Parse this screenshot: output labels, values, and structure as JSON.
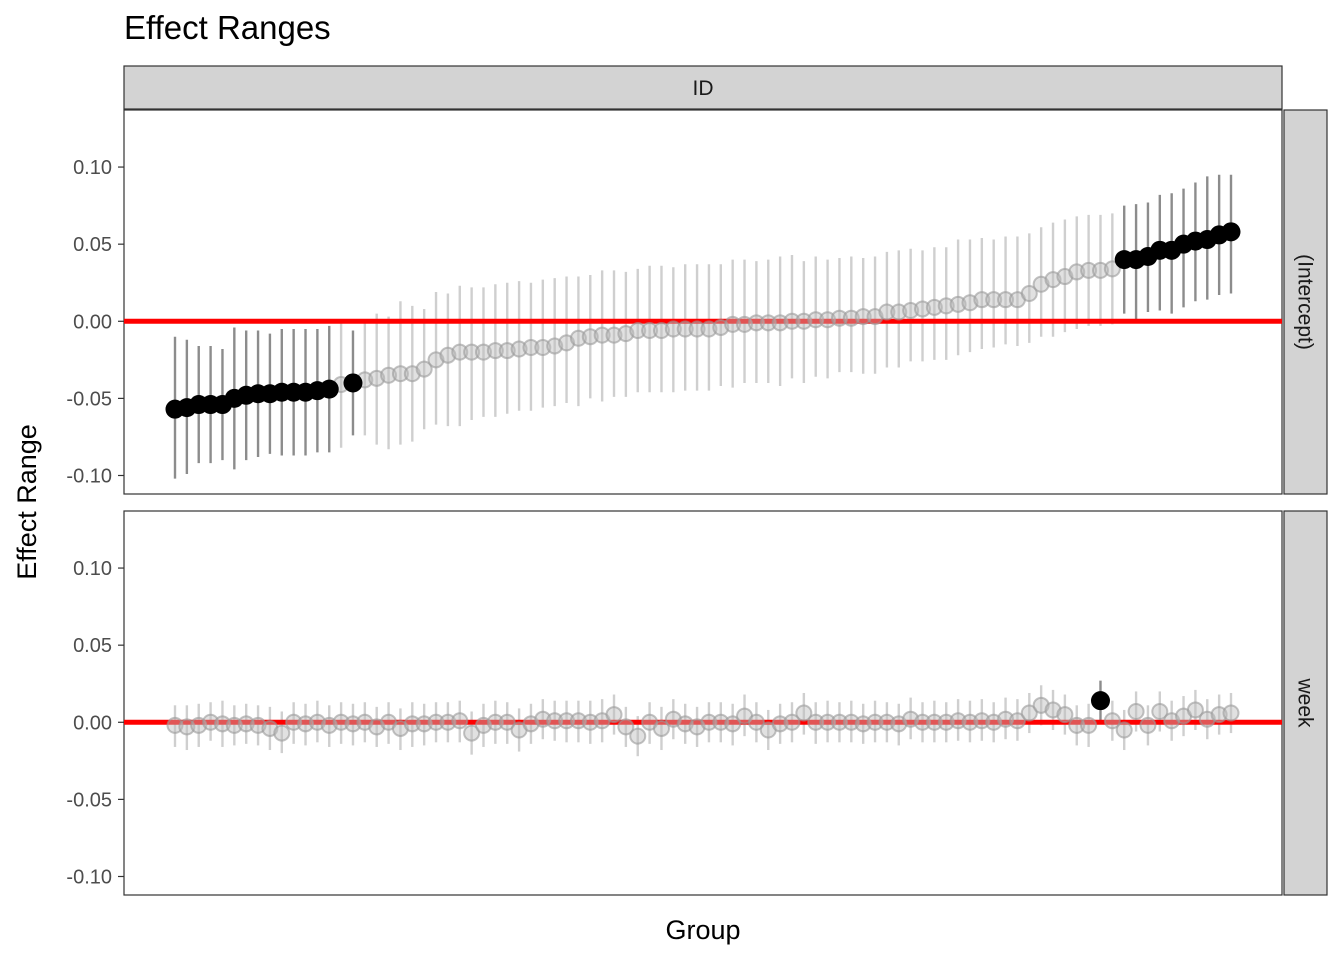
{
  "chart_data": {
    "type": "scatter",
    "subtype": "caterpillar-plot",
    "title": "Effect Ranges",
    "xlabel": "Group",
    "ylabel": "Effect Range",
    "ylim": [
      -0.112,
      0.137
    ],
    "yticks": [
      -0.1,
      -0.05,
      0.0,
      0.05,
      0.1
    ],
    "ytick_labels": [
      "-0.10",
      "-0.05",
      "0.00",
      "0.05",
      "0.10"
    ],
    "facet_column": "ID",
    "reference_line": {
      "y": 0,
      "color": "#ff0000"
    },
    "colors": {
      "significant_point": "#000000",
      "nonsignificant_point": "#bdbdbd",
      "reference_line": "#ff0000",
      "strip_fill": "#d3d3d3"
    },
    "grid": false,
    "legend": "none",
    "panels": [
      {
        "name": "(Intercept)",
        "groups": 90,
        "estimates": [
          -0.057,
          -0.056,
          -0.054,
          -0.054,
          -0.054,
          -0.05,
          -0.048,
          -0.047,
          -0.047,
          -0.046,
          -0.046,
          -0.046,
          -0.045,
          -0.044,
          -0.041,
          -0.04,
          -0.038,
          -0.037,
          -0.035,
          -0.034,
          -0.034,
          -0.031,
          -0.025,
          -0.022,
          -0.02,
          -0.02,
          -0.02,
          -0.019,
          -0.019,
          -0.018,
          -0.017,
          -0.017,
          -0.016,
          -0.014,
          -0.011,
          -0.01,
          -0.009,
          -0.009,
          -0.008,
          -0.006,
          -0.006,
          -0.006,
          -0.005,
          -0.005,
          -0.005,
          -0.005,
          -0.004,
          -0.002,
          -0.002,
          -0.001,
          -0.001,
          -0.001,
          0.0,
          0.0,
          0.001,
          0.001,
          0.002,
          0.002,
          0.003,
          0.003,
          0.006,
          0.006,
          0.007,
          0.008,
          0.009,
          0.01,
          0.011,
          0.012,
          0.014,
          0.014,
          0.014,
          0.014,
          0.018,
          0.024,
          0.027,
          0.029,
          0.032,
          0.033,
          0.033,
          0.034,
          0.04,
          0.04,
          0.042,
          0.046,
          0.046,
          0.05,
          0.052,
          0.053,
          0.056,
          0.058
        ],
        "lower": [
          -0.102,
          -0.099,
          -0.092,
          -0.092,
          -0.09,
          -0.096,
          -0.09,
          -0.088,
          -0.086,
          -0.087,
          -0.087,
          -0.087,
          -0.085,
          -0.085,
          -0.082,
          -0.074,
          -0.074,
          -0.08,
          -0.083,
          -0.08,
          -0.078,
          -0.07,
          -0.067,
          -0.068,
          -0.068,
          -0.064,
          -0.062,
          -0.062,
          -0.06,
          -0.058,
          -0.058,
          -0.056,
          -0.055,
          -0.053,
          -0.055,
          -0.05,
          -0.052,
          -0.049,
          -0.049,
          -0.046,
          -0.046,
          -0.046,
          -0.046,
          -0.045,
          -0.045,
          -0.045,
          -0.042,
          -0.043,
          -0.04,
          -0.04,
          -0.04,
          -0.042,
          -0.037,
          -0.04,
          -0.036,
          -0.037,
          -0.033,
          -0.033,
          -0.034,
          -0.034,
          -0.03,
          -0.03,
          -0.026,
          -0.026,
          -0.025,
          -0.025,
          -0.022,
          -0.02,
          -0.018,
          -0.017,
          -0.015,
          -0.016,
          -0.014,
          -0.01,
          -0.01,
          -0.007,
          -0.005,
          -0.003,
          -0.003,
          -0.002,
          0.005,
          0.001,
          0.006,
          0.007,
          0.005,
          0.009,
          0.013,
          0.014,
          0.017,
          0.018
        ],
        "upper": [
          -0.01,
          -0.012,
          -0.016,
          -0.016,
          -0.018,
          -0.004,
          -0.006,
          -0.006,
          -0.008,
          -0.005,
          -0.005,
          -0.005,
          -0.005,
          -0.003,
          0.0,
          -0.006,
          0.0,
          0.005,
          0.003,
          0.013,
          0.01,
          0.008,
          0.019,
          0.018,
          0.023,
          0.022,
          0.022,
          0.024,
          0.025,
          0.026,
          0.025,
          0.027,
          0.028,
          0.029,
          0.029,
          0.03,
          0.033,
          0.033,
          0.032,
          0.034,
          0.036,
          0.036,
          0.035,
          0.037,
          0.037,
          0.037,
          0.037,
          0.04,
          0.04,
          0.039,
          0.04,
          0.042,
          0.043,
          0.039,
          0.042,
          0.04,
          0.041,
          0.042,
          0.041,
          0.042,
          0.045,
          0.046,
          0.047,
          0.046,
          0.048,
          0.048,
          0.053,
          0.053,
          0.054,
          0.053,
          0.055,
          0.055,
          0.057,
          0.061,
          0.064,
          0.066,
          0.068,
          0.069,
          0.069,
          0.07,
          0.075,
          0.076,
          0.077,
          0.082,
          0.083,
          0.086,
          0.09,
          0.094,
          0.095,
          0.095
        ]
      },
      {
        "name": "week",
        "groups": 90,
        "estimates": [
          -0.002,
          -0.003,
          -0.002,
          0.0,
          -0.001,
          -0.002,
          -0.001,
          -0.002,
          -0.004,
          -0.007,
          0.0,
          -0.001,
          0.0,
          -0.002,
          0.0,
          -0.001,
          0.0,
          -0.003,
          0.0,
          -0.004,
          -0.001,
          -0.001,
          0.0,
          0.0,
          0.001,
          -0.007,
          -0.002,
          0.0,
          0.0,
          -0.005,
          -0.001,
          0.002,
          0.001,
          0.001,
          0.001,
          0.0,
          0.001,
          0.005,
          -0.003,
          -0.009,
          0.0,
          -0.004,
          0.002,
          -0.001,
          -0.003,
          0.0,
          0.0,
          -0.001,
          0.004,
          0.0,
          -0.005,
          -0.001,
          0.0,
          0.006,
          0.0,
          0.0,
          0.0,
          0.0,
          -0.001,
          0.0,
          0.0,
          -0.001,
          0.002,
          0.0,
          0.0,
          0.0,
          0.001,
          0.0,
          0.001,
          0.0,
          0.002,
          0.001,
          0.006,
          0.011,
          0.008,
          0.005,
          -0.002,
          -0.002,
          0.014,
          0.001,
          -0.005,
          0.007,
          -0.002,
          0.007,
          0.001,
          0.004,
          0.008,
          0.002,
          0.005,
          0.006
        ],
        "lower": [
          -0.016,
          -0.018,
          -0.016,
          -0.012,
          -0.016,
          -0.015,
          -0.014,
          -0.015,
          -0.018,
          -0.02,
          -0.014,
          -0.015,
          -0.013,
          -0.016,
          -0.014,
          -0.015,
          -0.013,
          -0.016,
          -0.014,
          -0.018,
          -0.016,
          -0.015,
          -0.013,
          -0.013,
          -0.013,
          -0.021,
          -0.016,
          -0.014,
          -0.014,
          -0.019,
          -0.014,
          -0.011,
          -0.012,
          -0.013,
          -0.013,
          -0.014,
          -0.013,
          -0.008,
          -0.016,
          -0.022,
          -0.014,
          -0.018,
          -0.011,
          -0.014,
          -0.016,
          -0.013,
          -0.013,
          -0.015,
          -0.009,
          -0.013,
          -0.018,
          -0.014,
          -0.013,
          -0.008,
          -0.014,
          -0.013,
          -0.013,
          -0.013,
          -0.014,
          -0.013,
          -0.013,
          -0.015,
          -0.011,
          -0.013,
          -0.013,
          -0.013,
          -0.012,
          -0.013,
          -0.012,
          -0.013,
          -0.011,
          -0.012,
          -0.007,
          -0.002,
          -0.005,
          -0.008,
          -0.015,
          -0.016,
          0.001,
          -0.012,
          -0.018,
          -0.006,
          -0.015,
          -0.006,
          -0.012,
          -0.009,
          -0.005,
          -0.011,
          -0.008,
          -0.007
        ],
        "upper": [
          0.011,
          0.011,
          0.012,
          0.013,
          0.014,
          0.011,
          0.012,
          0.011,
          0.01,
          0.007,
          0.013,
          0.012,
          0.014,
          0.011,
          0.013,
          0.012,
          0.013,
          0.01,
          0.013,
          0.009,
          0.013,
          0.012,
          0.013,
          0.013,
          0.014,
          0.007,
          0.012,
          0.014,
          0.013,
          0.009,
          0.012,
          0.015,
          0.014,
          0.014,
          0.014,
          0.014,
          0.015,
          0.018,
          0.01,
          0.004,
          0.013,
          0.01,
          0.015,
          0.012,
          0.01,
          0.013,
          0.013,
          0.012,
          0.018,
          0.013,
          0.008,
          0.012,
          0.013,
          0.019,
          0.013,
          0.014,
          0.013,
          0.014,
          0.012,
          0.014,
          0.013,
          0.012,
          0.016,
          0.013,
          0.014,
          0.013,
          0.015,
          0.014,
          0.015,
          0.013,
          0.016,
          0.015,
          0.019,
          0.024,
          0.021,
          0.018,
          0.011,
          0.012,
          0.027,
          0.014,
          0.008,
          0.02,
          0.011,
          0.02,
          0.014,
          0.017,
          0.021,
          0.015,
          0.018,
          0.019
        ]
      }
    ]
  }
}
